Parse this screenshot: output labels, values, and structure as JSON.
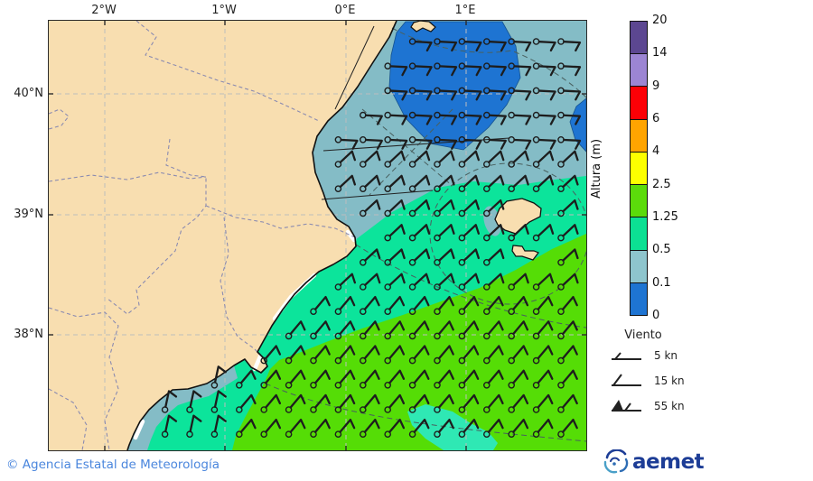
{
  "axes": {
    "top": [
      "2°W",
      "1°W",
      "0°E",
      "1°E"
    ],
    "left": [
      "40°N",
      "39°N",
      "38°N"
    ]
  },
  "colorbar": {
    "title": "Altura (m)",
    "stops": [
      "0",
      "0.1",
      "0.5",
      "1.25",
      "2.5",
      "4",
      "6",
      "9",
      "14",
      "20"
    ],
    "colors": [
      "#1e74d2",
      "#8ec5cd",
      "#0ce093",
      "#5bdb0b",
      "#fdff00",
      "#ffa400",
      "#fc0006",
      "#9c85d3",
      "#5c4791"
    ]
  },
  "wind_legend": {
    "title": "Viento",
    "items": [
      {
        "speed": "5 kn"
      },
      {
        "speed": "15 kn"
      },
      {
        "speed": "55 kn"
      }
    ]
  },
  "footer": {
    "copyright": "© Agencia Estatal de Meteorología",
    "logo_text": "aemet"
  },
  "map_colors": {
    "land": "#f8deb0",
    "sea_0_01": "#1e74d2",
    "sea_01_05": "#84bcc6",
    "sea_05_125": "#0ce49b",
    "sea_125_25": "#55dd06",
    "coastline": "#111111",
    "barb": "#1d1d1d"
  }
}
